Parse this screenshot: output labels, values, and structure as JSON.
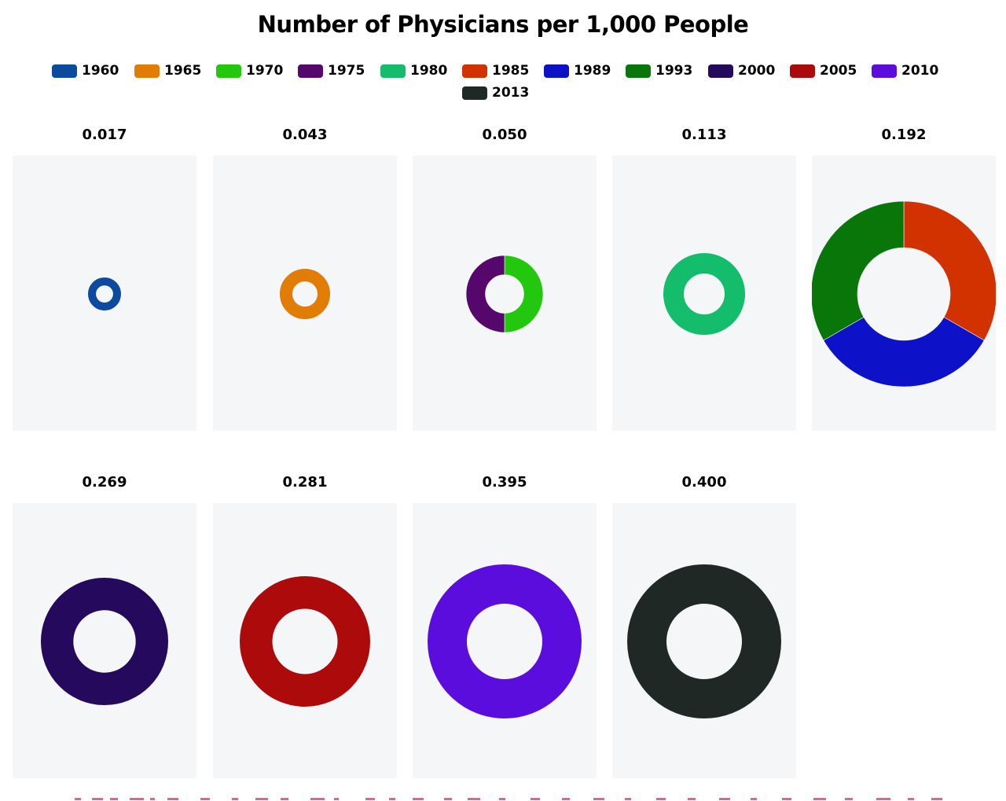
{
  "chart_data": {
    "type": "pie",
    "subtype": "donut-small-multiples",
    "title": "Number of Physicians per 1,000 People",
    "legend_placement": "top",
    "legend": [
      {
        "label": "1960",
        "color": "#0b4a9e"
      },
      {
        "label": "1965",
        "color": "#e17c05"
      },
      {
        "label": "1970",
        "color": "#23c80e"
      },
      {
        "label": "1975",
        "color": "#55076b"
      },
      {
        "label": "1980",
        "color": "#13bd6c"
      },
      {
        "label": "1985",
        "color": "#d13200"
      },
      {
        "label": "1989",
        "color": "#0d12c9"
      },
      {
        "label": "1993",
        "color": "#087608"
      },
      {
        "label": "2000",
        "color": "#25095c"
      },
      {
        "label": "2005",
        "color": "#ad0b0b"
      },
      {
        "label": "2010",
        "color": "#5a0ddc"
      },
      {
        "label": "2013",
        "color": "#202826"
      }
    ],
    "panels": [
      {
        "value": "0.017",
        "slices": [
          {
            "label": "1960",
            "value": 1
          }
        ]
      },
      {
        "value": "0.043",
        "slices": [
          {
            "label": "1965",
            "value": 1
          }
        ]
      },
      {
        "value": "0.050",
        "slices": [
          {
            "label": "1970",
            "value": 1
          },
          {
            "label": "1975",
            "value": 1
          }
        ]
      },
      {
        "value": "0.113",
        "slices": [
          {
            "label": "1980",
            "value": 1
          }
        ]
      },
      {
        "value": "0.192",
        "slices": [
          {
            "label": "1985",
            "value": 1
          },
          {
            "label": "1989",
            "value": 1
          },
          {
            "label": "1993",
            "value": 1
          }
        ]
      },
      {
        "value": "0.269",
        "slices": [
          {
            "label": "2000",
            "value": 1
          }
        ]
      },
      {
        "value": "0.281",
        "slices": [
          {
            "label": "2005",
            "value": 1
          }
        ]
      },
      {
        "value": "0.395",
        "slices": [
          {
            "label": "2010",
            "value": 1
          }
        ]
      },
      {
        "value": "0.400",
        "slices": [
          {
            "label": "2013",
            "value": 1
          }
        ]
      }
    ]
  }
}
